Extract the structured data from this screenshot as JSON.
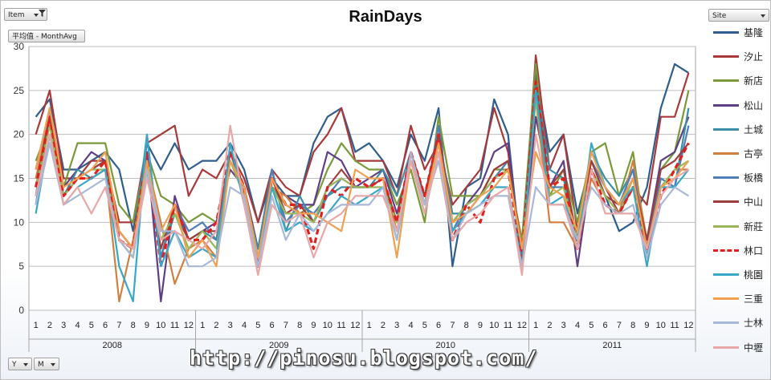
{
  "controls": {
    "item_filter": "Item",
    "value_field": "平均值 - MonthAvg",
    "site_filter": "Site",
    "row_y": "Y",
    "row_m": "M"
  },
  "watermark": "http://pinosu.blogspot.com/",
  "chart_data": {
    "type": "line",
    "title": "RainDays",
    "xlabel": "",
    "ylabel": "",
    "ylim": [
      0,
      30
    ],
    "yticks": [
      0,
      5,
      10,
      15,
      20,
      25,
      30
    ],
    "grid": true,
    "legend_position": "right",
    "years": [
      "2008",
      "2009",
      "2010",
      "2011"
    ],
    "months": [
      "1",
      "2",
      "3",
      "4",
      "5",
      "6",
      "7",
      "8",
      "9",
      "10",
      "11",
      "12"
    ],
    "series": [
      {
        "name": "基隆",
        "color": "#2f5d8c",
        "dashed": false,
        "values": [
          22,
          24,
          16,
          16,
          17,
          18,
          16,
          9,
          19,
          16,
          19,
          16,
          17,
          17,
          19,
          16,
          10,
          15,
          13,
          13,
          19,
          22,
          23,
          18,
          19,
          17,
          14,
          20,
          17,
          23,
          5,
          14,
          15,
          24,
          20,
          5,
          27,
          18,
          20,
          11,
          17,
          13,
          9,
          10,
          14,
          23,
          28,
          27
        ]
      },
      {
        "name": "汐止",
        "color": "#a8383a",
        "dashed": false,
        "values": [
          20,
          25,
          15,
          15,
          17,
          17,
          10,
          10,
          19,
          20,
          21,
          13,
          16,
          15,
          18,
          15,
          10,
          16,
          14,
          13,
          18,
          20,
          23,
          17,
          17,
          17,
          13,
          21,
          16,
          19,
          12,
          14,
          16,
          23,
          18,
          6,
          29,
          16,
          20,
          9,
          17,
          14,
          11,
          14,
          12,
          22,
          22,
          27
        ]
      },
      {
        "name": "新店",
        "color": "#7a9a3a",
        "dashed": false,
        "values": [
          17,
          21,
          14,
          19,
          19,
          19,
          12,
          10,
          18,
          13,
          12,
          10,
          11,
          10,
          17,
          14,
          7,
          14,
          12,
          11,
          12,
          16,
          19,
          17,
          16,
          16,
          12,
          16,
          10,
          22,
          13,
          13,
          13,
          16,
          16,
          8,
          28,
          13,
          16,
          10,
          18,
          19,
          13,
          18,
          7,
          16,
          18,
          25
        ]
      },
      {
        "name": "松山",
        "color": "#5e3f86",
        "dashed": false,
        "values": [
          16,
          23,
          14,
          16,
          18,
          17,
          9,
          7,
          18,
          1,
          13,
          8,
          9,
          10,
          16,
          14,
          7,
          14,
          13,
          12,
          12,
          18,
          17,
          14,
          15,
          16,
          11,
          17,
          13,
          20,
          10,
          12,
          14,
          18,
          19,
          5,
          22,
          14,
          17,
          5,
          16,
          13,
          12,
          15,
          8,
          17,
          18,
          22
        ]
      },
      {
        "name": "土城",
        "color": "#3a8fa6",
        "dashed": false,
        "values": [
          12,
          22,
          13,
          16,
          15,
          16,
          8,
          7,
          20,
          6,
          11,
          8,
          9,
          8,
          18,
          13,
          7,
          16,
          9,
          13,
          10,
          13,
          14,
          14,
          14,
          16,
          13,
          18,
          12,
          20,
          11,
          11,
          13,
          15,
          17,
          7,
          26,
          16,
          15,
          8,
          18,
          15,
          13,
          16,
          6,
          15,
          14,
          23
        ]
      },
      {
        "name": "古亭",
        "color": "#d08040",
        "dashed": false,
        "values": [
          15,
          22,
          13,
          15,
          15,
          16,
          1,
          8,
          17,
          10,
          3,
          7,
          8,
          6,
          17,
          13,
          6,
          14,
          13,
          11,
          10,
          14,
          15,
          14,
          14,
          15,
          9,
          17,
          13,
          19,
          10,
          12,
          13,
          16,
          17,
          7,
          24,
          10,
          10,
          7,
          15,
          12,
          11,
          17,
          8,
          14,
          16,
          16
        ]
      },
      {
        "name": "板橋",
        "color": "#4f7fb8",
        "dashed": false,
        "values": [
          13,
          23,
          13,
          15,
          16,
          17,
          8,
          6,
          16,
          6,
          12,
          9,
          10,
          8,
          18,
          14,
          6,
          16,
          10,
          12,
          11,
          13,
          15,
          14,
          14,
          15,
          10,
          18,
          12,
          21,
          9,
          12,
          13,
          15,
          17,
          6,
          25,
          14,
          14,
          8,
          17,
          14,
          12,
          16,
          7,
          15,
          14,
          21
        ]
      },
      {
        "name": "中山",
        "color": "#9c3f3c",
        "dashed": false,
        "values": [
          14,
          22,
          13,
          15,
          16,
          17,
          9,
          7,
          17,
          7,
          12,
          8,
          9,
          9,
          18,
          14,
          6,
          15,
          11,
          12,
          10,
          14,
          16,
          14,
          14,
          15,
          10,
          18,
          13,
          20,
          10,
          12,
          13,
          16,
          17,
          7,
          25,
          14,
          16,
          8,
          17,
          13,
          12,
          15,
          8,
          16,
          17,
          19
        ]
      },
      {
        "name": "新莊",
        "color": "#9ab85a",
        "dashed": false,
        "values": [
          14,
          21,
          13,
          15,
          16,
          16,
          8,
          6,
          16,
          8,
          11,
          7,
          9,
          7,
          17,
          13,
          6,
          14,
          11,
          11,
          10,
          14,
          15,
          14,
          14,
          14,
          10,
          17,
          12,
          19,
          10,
          12,
          13,
          15,
          16,
          7,
          24,
          13,
          14,
          8,
          16,
          13,
          11,
          15,
          7,
          14,
          16,
          17
        ]
      },
      {
        "name": "林口",
        "color": "#e02020",
        "dashed": true,
        "values": [
          14,
          22,
          13,
          15,
          15,
          17,
          8,
          7,
          18,
          5,
          12,
          8,
          8,
          10,
          18,
          14,
          5,
          15,
          12,
          12,
          7,
          14,
          13,
          15,
          14,
          15,
          10,
          18,
          13,
          20,
          8,
          12,
          10,
          15,
          16,
          6,
          26,
          14,
          15,
          7,
          16,
          12,
          11,
          14,
          7,
          13,
          16,
          19
        ]
      },
      {
        "name": "桃園",
        "color": "#38a8c8",
        "dashed": false,
        "values": [
          11,
          20,
          12,
          14,
          15,
          16,
          5,
          1,
          20,
          5,
          9,
          6,
          7,
          6,
          19,
          12,
          5,
          14,
          9,
          10,
          9,
          11,
          13,
          12,
          13,
          14,
          8,
          17,
          11,
          18,
          9,
          11,
          12,
          14,
          14,
          5,
          25,
          12,
          13,
          7,
          19,
          14,
          12,
          14,
          5,
          14,
          14,
          16
        ]
      },
      {
        "name": "三重",
        "color": "#f0a050",
        "dashed": false,
        "values": [
          16,
          23,
          14,
          15,
          16,
          18,
          9,
          7,
          17,
          9,
          12,
          6,
          8,
          5,
          17,
          14,
          6,
          15,
          12,
          11,
          11,
          10,
          9,
          16,
          15,
          15,
          6,
          17,
          12,
          19,
          10,
          11,
          13,
          14,
          16,
          7,
          18,
          14,
          13,
          9,
          18,
          14,
          12,
          15,
          7,
          14,
          15,
          17
        ]
      },
      {
        "name": "士林",
        "color": "#a8b8d8",
        "dashed": false,
        "values": [
          12,
          19,
          12,
          13,
          14,
          15,
          8,
          6,
          16,
          9,
          9,
          5,
          5,
          6,
          14,
          13,
          5,
          13,
          8,
          11,
          9,
          11,
          12,
          12,
          12,
          14,
          8,
          18,
          12,
          17,
          8,
          11,
          12,
          13,
          13,
          5,
          14,
          12,
          12,
          8,
          14,
          12,
          11,
          12,
          6,
          12,
          14,
          13
        ]
      },
      {
        "name": "中壢",
        "color": "#e8a8a8",
        "dashed": false,
        "values": [
          13,
          20,
          12,
          14,
          11,
          14,
          8,
          7,
          15,
          8,
          9,
          8,
          7,
          9,
          21,
          12,
          4,
          12,
          10,
          11,
          6,
          10,
          11,
          13,
          13,
          13,
          9,
          17,
          11,
          18,
          8,
          10,
          11,
          13,
          14,
          4,
          20,
          12,
          12,
          7,
          16,
          11,
          11,
          11,
          7,
          13,
          15,
          16
        ]
      }
    ]
  }
}
